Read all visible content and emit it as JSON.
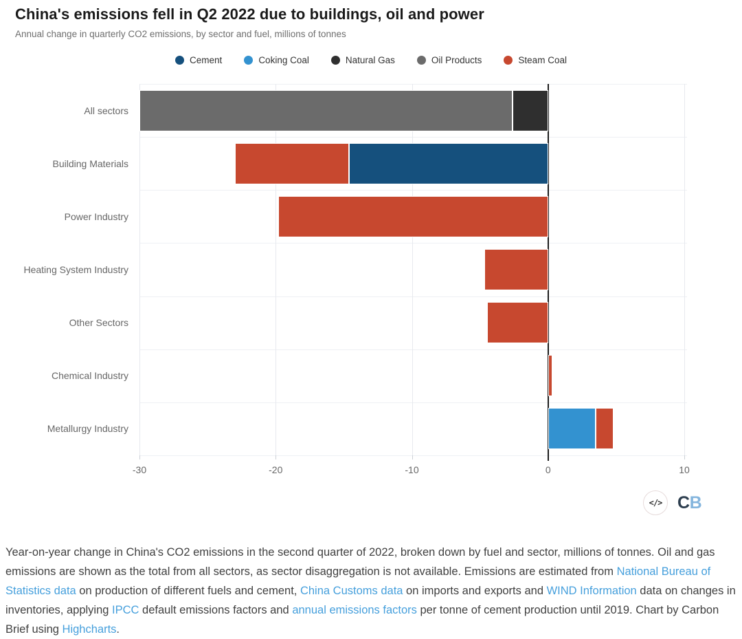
{
  "header": {
    "title": "China's emissions fell in Q2 2022 due to buildings, oil and power",
    "subtitle": "Annual change in quarterly CO2 emissions, by sector and fuel, millions of tonnes"
  },
  "chart_data": {
    "type": "bar",
    "orientation": "horizontal",
    "stacked": true,
    "title": "China's emissions fell in Q2 2022 due to buildings, oil and power",
    "subtitle": "Annual change in quarterly CO2 emissions, by sector and fuel, millions of tonnes",
    "categories": [
      "All sectors",
      "Building Materials",
      "Power Industry",
      "Heating System Industry",
      "Other Sectors",
      "Chemical Industry",
      "Metallurgy Industry"
    ],
    "series": [
      {
        "name": "Cement",
        "color": "#15507d",
        "values": [
          0,
          -14.6,
          0,
          0,
          0,
          0,
          0
        ]
      },
      {
        "name": "Coking Coal",
        "color": "#3392d0",
        "values": [
          0,
          0,
          0,
          0,
          0,
          0,
          3.5
        ]
      },
      {
        "name": "Natural Gas",
        "color": "#2f2f2f",
        "values": [
          -2.6,
          0,
          0,
          0,
          0,
          0,
          0
        ]
      },
      {
        "name": "Oil Products",
        "color": "#6b6b6b",
        "values": [
          -27.4,
          0,
          0,
          0,
          0,
          0,
          0
        ]
      },
      {
        "name": "Steam Coal",
        "color": "#c7482f",
        "values": [
          0,
          -8.4,
          -19.8,
          -4.7,
          -4.5,
          0.3,
          1.3
        ]
      }
    ],
    "xticks": [
      -30,
      -20,
      -10,
      0,
      10
    ],
    "xlim": [
      -30,
      10.2
    ],
    "xlabel": "",
    "ylabel": "",
    "legend_position": "top-center",
    "grid": "vertical"
  },
  "branding": {
    "embed_icon": "</>",
    "logo_letter_c": "C",
    "logo_letter_b": "B",
    "logo_c_color": "#2d3e4f",
    "logo_b_color": "#84b5dd"
  },
  "footer": {
    "link_color": "#459fdc",
    "segments": [
      {
        "text": "Year-on-year change in China's CO2 emissions in the second quarter of 2022, broken down by fuel and sector, millions of tonnes. Oil and gas emissions are shown as the total from all sectors, as sector disaggregation is not available. Emissions are estimated from ",
        "link": false
      },
      {
        "text": "National Bureau of Statistics data",
        "link": true
      },
      {
        "text": " on production of different fuels and cement, ",
        "link": false
      },
      {
        "text": "China Customs data",
        "link": true
      },
      {
        "text": " on imports and exports and ",
        "link": false
      },
      {
        "text": "WIND Information",
        "link": true
      },
      {
        "text": " data on changes in inventories, applying ",
        "link": false
      },
      {
        "text": "IPCC",
        "link": true
      },
      {
        "text": " default emissions factors and ",
        "link": false
      },
      {
        "text": "annual emissions factors",
        "link": true
      },
      {
        "text": " per tonne of cement production until 2019. Chart by Carbon Brief using ",
        "link": false
      },
      {
        "text": "Highcharts",
        "link": true
      },
      {
        "text": ".",
        "link": false
      }
    ]
  }
}
